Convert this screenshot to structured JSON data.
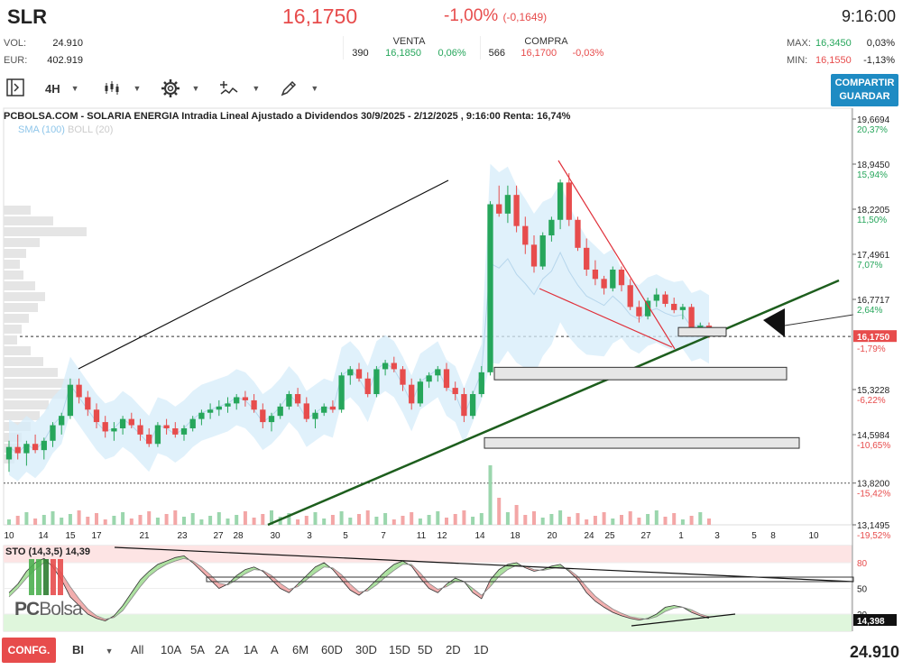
{
  "header": {
    "ticker": "SLR",
    "price": "16,1750",
    "change_pct": "-1,00%",
    "change_abs": "(-0,1649)",
    "time": "9:16:00",
    "vol_label": "VOL:",
    "vol_value": "24.910",
    "eur_label": "EUR:",
    "eur_value": "402.919",
    "venta_label": "VENTA",
    "venta_qty": "390",
    "venta_price": "16,1850",
    "venta_pct": "0,06%",
    "compra_label": "COMPRA",
    "compra_qty": "566",
    "compra_price": "16,1700",
    "compra_pct": "-0,03%",
    "max_label": "MAX:",
    "max_value": "16,3450",
    "max_pct": "0,03%",
    "min_label": "MIN:",
    "min_value": "16,1550",
    "min_pct": "-1,13%"
  },
  "toolbar": {
    "interval": "4H",
    "share_line1": "COMPARTIR",
    "share_line2": "GUARDAR"
  },
  "bottom_bar": {
    "config_label": "CONFG.",
    "bi_label": "BI",
    "periods": [
      "All",
      "10A",
      "5A",
      "2A",
      "1A",
      "A",
      "6M",
      "60D",
      "30D",
      "15D",
      "5D",
      "2D",
      "1D"
    ],
    "volume_total": "24.910"
  },
  "logo": {
    "pc": "PC",
    "bolsa": "Bolsa"
  },
  "colors": {
    "up": "#26a65b",
    "down": "#e74c4c",
    "bollinger": "#d6ecfa",
    "trend": "#1d5e1d",
    "accent": "#1e8bc3"
  },
  "chart_data": [
    {
      "type": "candlestick",
      "title": "PCBOLSA.COM - SOLARIA ENERGIA Intradia Lineal Ajustado a Dividendos 30/9/2025 - 2/12/2025 , 9:16:00 Renta: 16,74%",
      "legend": {
        "sma": "SMA (100)",
        "boll": "BOLL (20)"
      },
      "ylim": [
        13.1495,
        19.6694
      ],
      "y_ticks": [
        {
          "value": 19.6694,
          "label": "19,6694",
          "pct": "20,37%"
        },
        {
          "value": 18.945,
          "label": "18,9450",
          "pct": "15,94%"
        },
        {
          "value": 18.2205,
          "label": "18,2205",
          "pct": "11,50%"
        },
        {
          "value": 17.4961,
          "label": "17,4961",
          "pct": "7,07%"
        },
        {
          "value": 16.7717,
          "label": "16,7717",
          "pct": "2,64%"
        },
        {
          "value": 15.3228,
          "label": "15,3228",
          "pct": "-6,22%"
        },
        {
          "value": 14.5984,
          "label": "14,5984",
          "pct": "-10,65%"
        },
        {
          "value": 13.82,
          "label": "13,8200",
          "pct": "-15,42%"
        },
        {
          "value": 13.1495,
          "label": "13,1495",
          "pct": "-19,52%"
        }
      ],
      "last_price": {
        "value": 16.175,
        "label": "16,1750",
        "pct": "-1,79%"
      },
      "reference_line": 13.82,
      "x_ticks": [
        "10",
        "14",
        "15",
        "17",
        "21",
        "23",
        "27",
        "28",
        "30",
        "3",
        "5",
        "7",
        "11",
        "12",
        "14",
        "18",
        "20",
        "24",
        "25",
        "27",
        "1",
        "3",
        "5",
        "8",
        "10"
      ],
      "ohlc": [
        [
          14.2,
          14.5,
          14.0,
          14.4
        ],
        [
          14.4,
          14.6,
          14.2,
          14.3
        ],
        [
          14.3,
          14.5,
          14.1,
          14.45
        ],
        [
          14.45,
          14.6,
          14.3,
          14.35
        ],
        [
          14.35,
          14.55,
          14.2,
          14.5
        ],
        [
          14.5,
          14.8,
          14.4,
          14.75
        ],
        [
          14.75,
          14.95,
          14.6,
          14.9
        ],
        [
          14.9,
          15.5,
          14.85,
          15.4
        ],
        [
          15.4,
          15.5,
          15.1,
          15.2
        ],
        [
          15.2,
          15.3,
          14.9,
          15.0
        ],
        [
          15.0,
          15.1,
          14.7,
          14.8
        ],
        [
          14.8,
          14.9,
          14.55,
          14.65
        ],
        [
          14.65,
          14.8,
          14.5,
          14.7
        ],
        [
          14.7,
          14.9,
          14.6,
          14.85
        ],
        [
          14.85,
          14.95,
          14.7,
          14.75
        ],
        [
          14.75,
          14.85,
          14.5,
          14.6
        ],
        [
          14.6,
          14.7,
          14.4,
          14.45
        ],
        [
          14.45,
          14.8,
          14.4,
          14.75
        ],
        [
          14.75,
          14.85,
          14.6,
          14.7
        ],
        [
          14.7,
          14.8,
          14.55,
          14.6
        ],
        [
          14.6,
          14.75,
          14.5,
          14.7
        ],
        [
          14.7,
          14.9,
          14.65,
          14.85
        ],
        [
          14.85,
          15.0,
          14.75,
          14.95
        ],
        [
          14.95,
          15.1,
          14.85,
          15.0
        ],
        [
          15.0,
          15.15,
          14.9,
          15.05
        ],
        [
          15.05,
          15.2,
          14.95,
          15.1
        ],
        [
          15.1,
          15.25,
          15.0,
          15.2
        ],
        [
          15.2,
          15.3,
          15.05,
          15.15
        ],
        [
          15.15,
          15.25,
          14.95,
          15.0
        ],
        [
          15.0,
          15.1,
          14.7,
          14.8
        ],
        [
          14.8,
          14.95,
          14.65,
          14.9
        ],
        [
          14.9,
          15.1,
          14.85,
          15.05
        ],
        [
          15.05,
          15.3,
          15.0,
          15.25
        ],
        [
          15.25,
          15.35,
          15.05,
          15.1
        ],
        [
          15.1,
          15.2,
          14.8,
          14.85
        ],
        [
          14.85,
          15.0,
          14.7,
          14.95
        ],
        [
          14.95,
          15.1,
          14.9,
          15.05
        ],
        [
          15.05,
          15.15,
          14.95,
          15.0
        ],
        [
          15.0,
          15.6,
          14.95,
          15.55
        ],
        [
          15.55,
          15.7,
          15.4,
          15.65
        ],
        [
          15.65,
          15.75,
          15.45,
          15.5
        ],
        [
          15.5,
          15.6,
          15.2,
          15.25
        ],
        [
          15.25,
          15.7,
          15.2,
          15.65
        ],
        [
          15.65,
          15.8,
          15.55,
          15.75
        ],
        [
          15.75,
          15.85,
          15.6,
          15.65
        ],
        [
          15.65,
          15.7,
          15.3,
          15.4
        ],
        [
          15.4,
          15.5,
          15.0,
          15.1
        ],
        [
          15.1,
          15.5,
          15.05,
          15.45
        ],
        [
          15.45,
          15.6,
          15.35,
          15.55
        ],
        [
          15.55,
          15.7,
          15.45,
          15.65
        ],
        [
          15.65,
          15.75,
          15.3,
          15.35
        ],
        [
          15.35,
          15.45,
          15.15,
          15.25
        ],
        [
          15.25,
          15.35,
          14.8,
          14.9
        ],
        [
          14.9,
          15.3,
          14.85,
          15.25
        ],
        [
          15.25,
          15.7,
          15.2,
          15.6
        ],
        [
          15.6,
          18.35,
          15.55,
          18.3
        ],
        [
          18.3,
          18.6,
          18.1,
          18.15
        ],
        [
          18.15,
          18.6,
          18.0,
          18.45
        ],
        [
          18.45,
          18.6,
          17.85,
          17.95
        ],
        [
          17.95,
          18.1,
          17.5,
          17.65
        ],
        [
          17.65,
          17.8,
          17.2,
          17.3
        ],
        [
          17.3,
          17.85,
          17.25,
          17.8
        ],
        [
          17.8,
          18.1,
          17.7,
          18.05
        ],
        [
          18.05,
          18.7,
          17.9,
          18.65
        ],
        [
          18.65,
          18.8,
          17.95,
          18.05
        ],
        [
          18.05,
          18.1,
          17.55,
          17.6
        ],
        [
          17.6,
          17.75,
          17.15,
          17.25
        ],
        [
          17.25,
          17.4,
          17.0,
          17.1
        ],
        [
          17.1,
          17.15,
          16.85,
          16.95
        ],
        [
          16.95,
          17.3,
          16.9,
          17.25
        ],
        [
          17.25,
          17.3,
          16.9,
          17.0
        ],
        [
          17.0,
          17.1,
          16.6,
          16.65
        ],
        [
          16.65,
          16.75,
          16.4,
          16.5
        ],
        [
          16.5,
          16.8,
          16.45,
          16.75
        ],
        [
          16.75,
          16.95,
          16.65,
          16.85
        ],
        [
          16.85,
          16.9,
          16.65,
          16.7
        ],
        [
          16.7,
          16.8,
          16.55,
          16.6
        ],
        [
          16.6,
          16.7,
          16.45,
          16.65
        ],
        [
          16.65,
          16.7,
          16.2,
          16.25
        ],
        [
          16.25,
          16.4,
          16.2,
          16.35
        ],
        [
          16.35,
          16.4,
          16.15,
          16.18
        ]
      ],
      "boxes": [
        {
          "y_top": 16.32,
          "y_bottom": 16.18
        },
        {
          "y_top": 15.68,
          "y_bottom": 15.48
        },
        {
          "y_top": 14.55,
          "y_bottom": 14.38
        }
      ]
    },
    {
      "type": "line",
      "title": "STO (14,3,5)",
      "value_label": "14,39",
      "current_badge": "14,398",
      "ylim": [
        0,
        100
      ],
      "y_ticks": [
        80,
        50,
        20
      ],
      "series": [
        {
          "values": [
            45,
            55,
            70,
            80,
            85,
            75,
            60,
            40,
            30,
            20,
            15,
            12,
            18,
            30,
            45,
            60,
            70,
            78,
            82,
            86,
            88,
            80,
            70,
            60,
            50,
            55,
            65,
            72,
            75,
            70,
            60,
            50,
            45,
            55,
            65,
            75,
            80,
            72,
            60,
            48,
            42,
            50,
            60,
            70,
            78,
            82,
            76,
            62,
            50,
            45,
            55,
            62,
            58,
            45,
            38,
            60,
            72,
            78,
            80,
            74,
            70,
            72,
            76,
            78,
            70,
            60,
            45,
            35,
            28,
            22,
            18,
            15,
            13,
            15,
            20,
            28,
            30,
            28,
            22,
            18,
            15
          ]
        },
        {
          "values": [
            40,
            50,
            62,
            72,
            80,
            78,
            68,
            52,
            38,
            26,
            18,
            14,
            16,
            24,
            38,
            52,
            64,
            72,
            78,
            82,
            85,
            82,
            75,
            66,
            56,
            54,
            60,
            67,
            72,
            71,
            65,
            56,
            49,
            52,
            60,
            68,
            75,
            74,
            66,
            55,
            46,
            47,
            54,
            63,
            71,
            78,
            78,
            68,
            56,
            49,
            52,
            58,
            58,
            50,
            42,
            52,
            64,
            72,
            77,
            76,
            72,
            71,
            73,
            75,
            72,
            64,
            52,
            41,
            33,
            26,
            21,
            17,
            15,
            14,
            17,
            23,
            27,
            28,
            25,
            20,
            17
          ]
        }
      ]
    }
  ]
}
